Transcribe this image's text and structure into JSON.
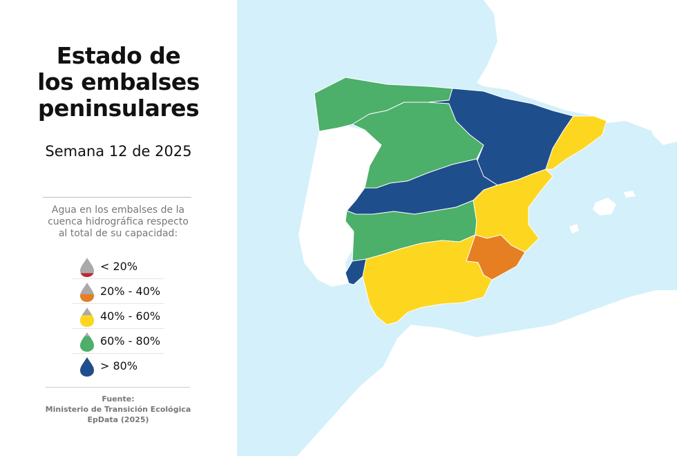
{
  "title": {
    "line1": "Estado de",
    "line2": "los embalses",
    "line3": "peninsulares"
  },
  "subtitle": "Semana 12 de 2025",
  "description": {
    "line1": "Agua en los embalses de la",
    "line2": "cuenca hidrográfica respecto",
    "line3": "al total de su capacidad:"
  },
  "legend": [
    {
      "label": "< 20%",
      "color": "#c0272d",
      "fill_fraction": 0.2
    },
    {
      "label": "20% - 40%",
      "color": "#e67e22",
      "fill_fraction": 0.4
    },
    {
      "label": "40% - 60%",
      "color": "#fdd61f",
      "fill_fraction": 0.6
    },
    {
      "label": "60% - 80%",
      "color": "#4caf6a",
      "fill_fraction": 0.8
    },
    {
      "label": "> 80%",
      "color": "#1f4e8c",
      "fill_fraction": 1.0
    }
  ],
  "source": {
    "line1": "Fuente:",
    "line2": "Ministerio de Transición Ecológica",
    "line3": "EpData (2025)"
  },
  "colors": {
    "sea": "#d4f0fa",
    "land_other": "#ffffff",
    "empty_drop": "#aaaaaa"
  },
  "basins": [
    {
      "name": "Cantábrico y Miño-Sil",
      "category": "60% - 80%"
    },
    {
      "name": "Duero",
      "category": "60% - 80%"
    },
    {
      "name": "Ebro",
      "category": "> 80%"
    },
    {
      "name": "Cuencas internas de Cataluña",
      "category": "40% - 60%"
    },
    {
      "name": "Tajo",
      "category": "> 80%"
    },
    {
      "name": "Guadiana",
      "category": "60% - 80%"
    },
    {
      "name": "Júcar",
      "category": "40% - 60%"
    },
    {
      "name": "Segura",
      "category": "20% - 40%"
    },
    {
      "name": "Guadalquivir y cuencas andaluzas",
      "category": "40% - 60%"
    },
    {
      "name": "Tinto, Odiel y Piedras",
      "category": "> 80%"
    }
  ]
}
